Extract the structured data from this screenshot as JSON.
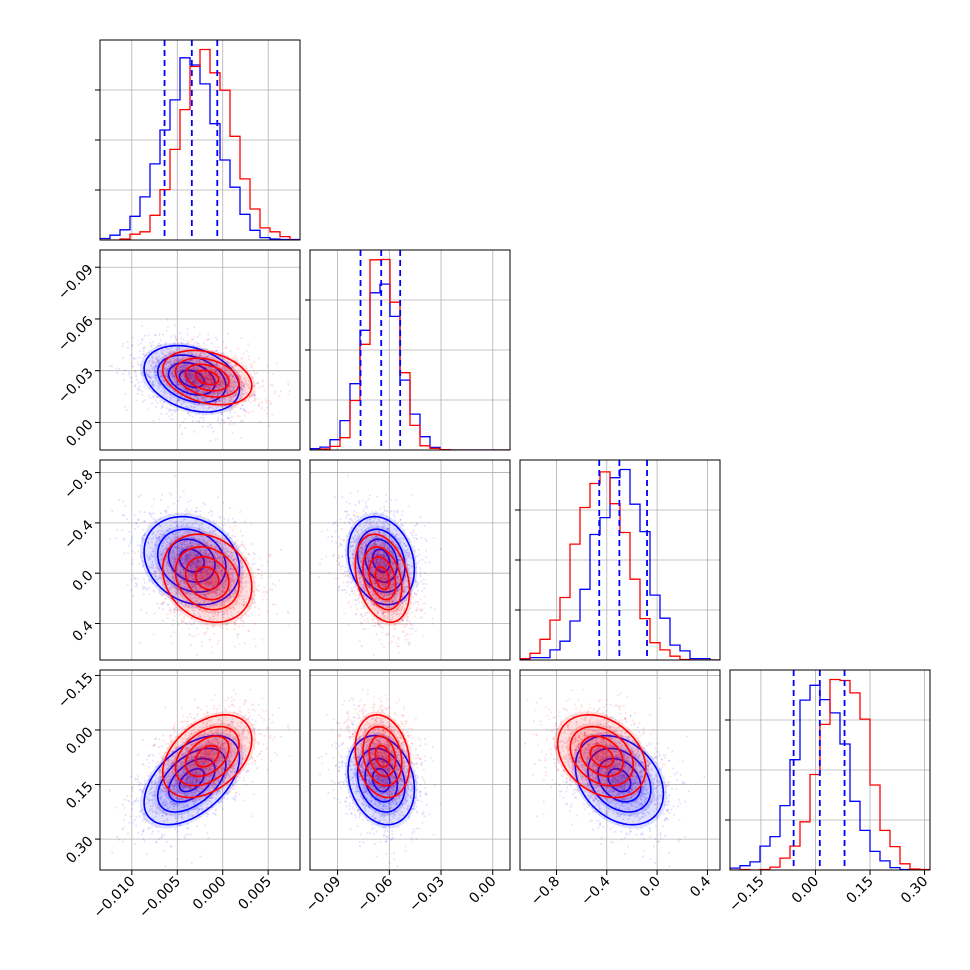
{
  "chart_data": {
    "type": "corner",
    "grid": true,
    "colors": {
      "blue": "#0000ff",
      "red": "#ff0000",
      "grid": "#b0b0b0"
    },
    "params": [
      {
        "range": [
          -0.0135,
          0.0085
        ],
        "ticks": [
          -0.01,
          -0.005,
          0.0,
          0.005
        ],
        "tick_labels": [
          "−0.010",
          "−0.005",
          "0.000",
          "0.005"
        ]
      },
      {
        "range": [
          -0.106,
          0.01
        ],
        "ticks": [
          -0.09,
          -0.06,
          -0.03,
          0.0
        ],
        "tick_labels": [
          "−0.09",
          "−0.06",
          "−0.03",
          "0.00"
        ]
      },
      {
        "range": [
          -1.09,
          0.5
        ],
        "ticks": [
          -0.8,
          -0.4,
          0.0,
          0.4
        ],
        "tick_labels": [
          "−0.8",
          "−0.4",
          "0.0",
          "0.4"
        ]
      },
      {
        "range": [
          -0.235,
          0.315
        ],
        "ticks": [
          -0.15,
          0.0,
          0.15,
          0.3
        ],
        "tick_labels": [
          "−0.15",
          "0.00",
          "0.15",
          "0.30"
        ]
      }
    ],
    "row_tick_labels": {
      "1": [
        "0.00",
        "−0.03",
        "−0.06",
        "−0.09"
      ],
      "2": [
        "0.4",
        "0.0",
        "−0.4",
        "−0.8"
      ],
      "3": [
        "0.30",
        "0.15",
        "0.00",
        "−0.15"
      ]
    },
    "bottom_tick_labels": [
      [
        "−0.010",
        "−0.005",
        "0.000",
        "0.005"
      ],
      [
        "−0.09",
        "−0.06",
        "−0.03",
        "0.00"
      ],
      [
        "−0.8",
        "−0.4",
        "0.0",
        "0.4"
      ],
      [
        "−0.15",
        "0.00",
        "0.15",
        "0.30"
      ]
    ],
    "series": [
      {
        "color": "#0000ff",
        "means": [
          -0.0034,
          -0.0647,
          -0.3,
          0.012
        ],
        "sds": [
          0.003,
          0.011,
          0.2,
          0.07
        ],
        "corr": [
          [
            1,
            -0.3,
            -0.2,
            0.5
          ],
          [
            -0.3,
            1,
            -0.2,
            -0.2
          ],
          [
            -0.2,
            -0.2,
            1,
            -0.3
          ],
          [
            0.5,
            -0.2,
            -0.3,
            1
          ]
        ],
        "quantiles": [
          [
            -0.0064,
            -0.0034,
            -0.0006
          ],
          [
            -0.0767,
            -0.0647,
            -0.0537
          ],
          [
            -0.46,
            -0.3,
            -0.08
          ],
          [
            -0.06,
            0.012,
            0.08
          ]
        ]
      },
      {
        "color": "#ff0000",
        "means": [
          -0.0017,
          -0.064,
          -0.44,
          0.078
        ],
        "sds": [
          0.0028,
          0.009,
          0.2,
          0.065
        ],
        "corr": [
          [
            1,
            -0.3,
            -0.2,
            0.4
          ],
          [
            -0.3,
            1,
            -0.3,
            -0.2
          ],
          [
            -0.2,
            -0.3,
            1,
            -0.3
          ],
          [
            0.4,
            -0.2,
            -0.3,
            1
          ]
        ]
      }
    ]
  }
}
